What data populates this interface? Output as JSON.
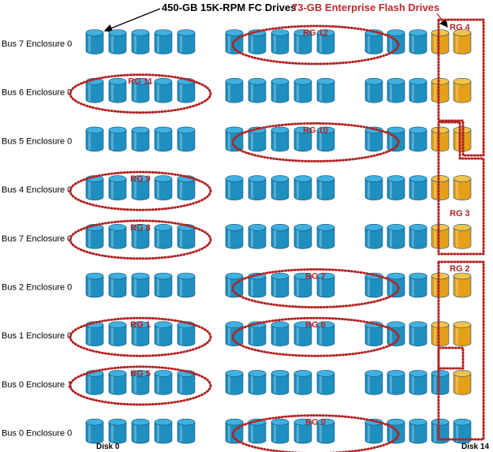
{
  "titles": {
    "fc_drives": "450-GB 15K-RPM FC Drives",
    "flash_drives": "73-GB Enterprise Flash Drives"
  },
  "axis": {
    "first_disk": "Disk 0",
    "last_disk": "Disk 14"
  },
  "rows": [
    {
      "label": "Bus 7 Enclosure 0",
      "flash_disks": [
        13,
        14
      ]
    },
    {
      "label": "Bus 6 Enclosure 0",
      "flash_disks": [
        13,
        14
      ]
    },
    {
      "label": "Bus 5 Enclosure 0",
      "flash_disks": [
        13,
        14
      ]
    },
    {
      "label": "Bus 4 Enclosure 0",
      "flash_disks": [
        13,
        14
      ]
    },
    {
      "label": "Bus 7 Enclosure 0",
      "flash_disks": [
        13,
        14
      ]
    },
    {
      "label": "Bus 2 Enclosure 0",
      "flash_disks": [
        13,
        14
      ]
    },
    {
      "label": "Bus 1 Enclosure 0",
      "flash_disks": [
        13,
        14
      ]
    },
    {
      "label": "Bus 0 Enclosure 1",
      "flash_disks": [
        14
      ]
    },
    {
      "label": "Bus 0 Enclosure 0",
      "flash_disks": []
    }
  ],
  "raid_groups": [
    {
      "label": "RG 12",
      "row": 0,
      "first_disk": 6,
      "last_disk": 10
    },
    {
      "label": "RG 11",
      "row": 1,
      "first_disk": 0,
      "last_disk": 4
    },
    {
      "label": "RG 10",
      "row": 2,
      "first_disk": 6,
      "last_disk": 10
    },
    {
      "label": "RG 9",
      "row": 3,
      "first_disk": 0,
      "last_disk": 4
    },
    {
      "label": "RG 8",
      "row": 4,
      "first_disk": 0,
      "last_disk": 4
    },
    {
      "label": "RG 7",
      "row": 5,
      "first_disk": 6,
      "last_disk": 10
    },
    {
      "label": "RG 1",
      "row": 6,
      "first_disk": 0,
      "last_disk": 4
    },
    {
      "label": "RG 6",
      "row": 6,
      "first_disk": 6,
      "last_disk": 10
    },
    {
      "label": "RG 5",
      "row": 7,
      "first_disk": 0,
      "last_disk": 4
    },
    {
      "label": "RG 0",
      "row": 8,
      "first_disk": 6,
      "last_disk": 10
    }
  ],
  "flash_groups": [
    {
      "label": "RG 4"
    },
    {
      "label": "RG 3"
    },
    {
      "label": "RG 2"
    }
  ],
  "colors": {
    "fc_body": "#1f8fc0",
    "fc_top": "#3fb0e0",
    "flash_body": "#e5a019",
    "flash_top": "#f5c24a",
    "rg_outline": "#b22222",
    "flash_title": "#c0282d"
  }
}
